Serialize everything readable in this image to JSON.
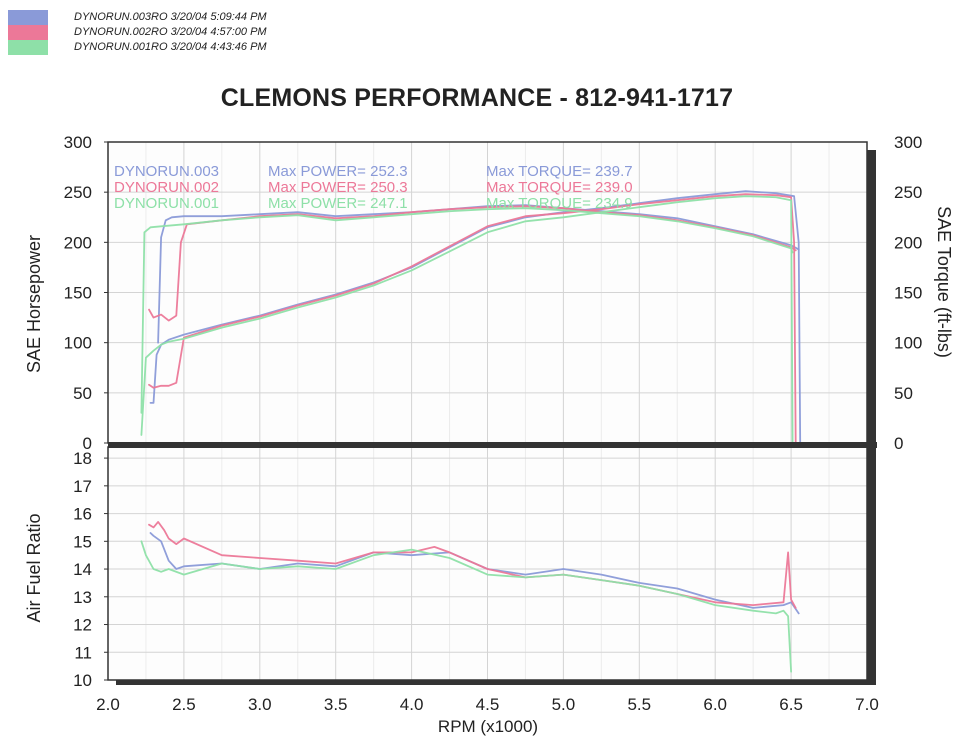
{
  "legend": {
    "items": [
      {
        "text": "DYNORUN.003RO  3/20/04 5:09:44 PM",
        "color": "#8a9ad8"
      },
      {
        "text": "DYNORUN.002RO  3/20/04 4:57:00 PM",
        "color": "#ec7898"
      },
      {
        "text": "DYNORUN.001RO  3/20/04 4:43:46 PM",
        "color": "#8ee0a8"
      }
    ]
  },
  "title": "CLEMONS PERFORMANCE - 812-941-1717",
  "colors": {
    "run003": "#8a9ad8",
    "run002": "#ec7898",
    "run001": "#8ee0a8",
    "frame": "#333333"
  },
  "chart_data": {
    "type": "line",
    "xlabel": "RPM (x1000)",
    "xlim": [
      2.0,
      7.0
    ],
    "xticks": [
      "2.0",
      "2.5",
      "3.0",
      "3.5",
      "4.0",
      "4.5",
      "5.0",
      "5.5",
      "6.0",
      "6.5",
      "7.0"
    ],
    "grid": true,
    "top_panel": {
      "ylabel_left": "SAE Horsepower",
      "ylabel_right": "SAE Torque (ft-lbs)",
      "ylim": [
        0,
        300
      ],
      "yticks": [
        "0",
        "50",
        "100",
        "150",
        "200",
        "250",
        "300"
      ],
      "summary": [
        {
          "run": "DYNORUN.003",
          "power": "Max POWER= 252.3",
          "torque": "Max TORQUE= 239.7",
          "color": "#8a9ad8"
        },
        {
          "run": "DYNORUN.002",
          "power": "Max POWER= 250.3",
          "torque": "Max TORQUE= 239.0",
          "color": "#ec7898"
        },
        {
          "run": "DYNORUN.001",
          "power": "Max POWER= 247.1",
          "torque": "Max TORQUE= 234.9",
          "color": "#8ee0a8"
        }
      ],
      "series": [
        {
          "name": "DYNORUN.003",
          "measure": "power",
          "color": "#8a9ad8",
          "x": [
            2.28,
            2.3,
            2.32,
            2.35,
            2.4,
            2.5,
            2.75,
            3.0,
            3.25,
            3.5,
            3.75,
            4.0,
            4.25,
            4.5,
            4.75,
            5.0,
            5.25,
            5.5,
            5.75,
            6.0,
            6.2,
            6.4,
            6.52,
            6.55,
            6.56
          ],
          "y": [
            40,
            40,
            88,
            98,
            103,
            108,
            118,
            127,
            138,
            148,
            160,
            175,
            195,
            215,
            225,
            230,
            234,
            239,
            244,
            248,
            251,
            249,
            246,
            200,
            0
          ]
        },
        {
          "name": "DYNORUN.003",
          "measure": "torque",
          "color": "#8a9ad8",
          "x": [
            2.33,
            2.35,
            2.38,
            2.42,
            2.5,
            2.75,
            3.0,
            3.25,
            3.5,
            3.75,
            4.0,
            4.25,
            4.5,
            4.75,
            5.0,
            5.25,
            5.5,
            5.75,
            6.0,
            6.25,
            6.5,
            6.55
          ],
          "y": [
            100,
            205,
            222,
            225,
            226,
            226,
            228,
            230,
            226,
            228,
            230,
            233,
            236,
            237,
            234,
            231,
            228,
            224,
            216,
            208,
            197,
            193
          ]
        },
        {
          "name": "DYNORUN.002",
          "measure": "power",
          "color": "#ec7898",
          "x": [
            2.27,
            2.3,
            2.35,
            2.4,
            2.45,
            2.5,
            2.75,
            3.0,
            3.25,
            3.5,
            3.75,
            4.0,
            4.25,
            4.5,
            4.75,
            5.0,
            5.25,
            5.5,
            5.75,
            6.0,
            6.2,
            6.4,
            6.5,
            6.52,
            6.53
          ],
          "y": [
            58,
            55,
            57,
            57,
            60,
            105,
            117,
            126,
            137,
            147,
            159,
            176,
            196,
            216,
            226,
            229,
            233,
            238,
            242,
            246,
            248,
            247,
            245,
            200,
            0
          ]
        },
        {
          "name": "DYNORUN.002",
          "measure": "torque",
          "color": "#ec7898",
          "x": [
            2.27,
            2.3,
            2.35,
            2.4,
            2.45,
            2.48,
            2.52,
            2.75,
            3.0,
            3.25,
            3.5,
            3.75,
            4.0,
            4.25,
            4.5,
            4.75,
            5.0,
            5.25,
            5.5,
            5.75,
            6.0,
            6.25,
            6.5,
            6.53
          ],
          "y": [
            133,
            125,
            128,
            122,
            127,
            200,
            218,
            222,
            226,
            228,
            224,
            226,
            230,
            233,
            235,
            236,
            234,
            230,
            227,
            222,
            215,
            207,
            195,
            192
          ]
        },
        {
          "name": "DYNORUN.001",
          "measure": "power",
          "color": "#8ee0a8",
          "x": [
            2.22,
            2.25,
            2.3,
            2.35,
            2.4,
            2.5,
            2.75,
            3.0,
            3.25,
            3.5,
            3.75,
            4.0,
            4.25,
            4.5,
            4.75,
            5.0,
            5.25,
            5.5,
            5.75,
            6.0,
            6.2,
            6.4,
            6.5,
            6.51
          ],
          "y": [
            8,
            85,
            92,
            98,
            101,
            104,
            115,
            124,
            135,
            145,
            157,
            172,
            191,
            210,
            221,
            225,
            230,
            235,
            240,
            244,
            246,
            245,
            242,
            0
          ]
        },
        {
          "name": "DYNORUN.001",
          "measure": "torque",
          "color": "#8ee0a8",
          "x": [
            2.22,
            2.24,
            2.28,
            2.35,
            2.5,
            2.75,
            3.0,
            3.25,
            3.5,
            3.75,
            4.0,
            4.25,
            4.5,
            4.75,
            5.0,
            5.25,
            5.5,
            5.75,
            6.0,
            6.25,
            6.5,
            6.51
          ],
          "y": [
            30,
            210,
            215,
            216,
            218,
            222,
            225,
            227,
            222,
            225,
            228,
            231,
            233,
            234,
            232,
            229,
            226,
            221,
            214,
            206,
            194,
            190
          ]
        }
      ]
    },
    "bottom_panel": {
      "ylabel": "Air Fuel Ratio",
      "ylim": [
        10,
        18.4
      ],
      "yticks": [
        "10",
        "11",
        "12",
        "13",
        "14",
        "15",
        "16",
        "17",
        "18"
      ],
      "series": [
        {
          "name": "DYNORUN.003",
          "color": "#8a9ad8",
          "x": [
            2.28,
            2.3,
            2.35,
            2.4,
            2.45,
            2.5,
            2.75,
            3.0,
            3.25,
            3.5,
            3.75,
            4.0,
            4.25,
            4.5,
            4.75,
            5.0,
            5.25,
            5.5,
            5.75,
            6.0,
            6.25,
            6.45,
            6.5,
            6.55
          ],
          "y": [
            15.3,
            15.2,
            15.0,
            14.3,
            14.0,
            14.1,
            14.2,
            14.0,
            14.2,
            14.1,
            14.6,
            14.5,
            14.6,
            14.0,
            13.8,
            14.0,
            13.8,
            13.5,
            13.3,
            12.9,
            12.6,
            12.7,
            12.8,
            12.4
          ]
        },
        {
          "name": "DYNORUN.002",
          "color": "#ec7898",
          "x": [
            2.27,
            2.3,
            2.33,
            2.37,
            2.4,
            2.45,
            2.5,
            2.75,
            3.0,
            3.25,
            3.5,
            3.75,
            4.0,
            4.15,
            4.25,
            4.5,
            4.75,
            5.0,
            5.25,
            5.5,
            5.75,
            6.0,
            6.25,
            6.45,
            6.48,
            6.5,
            6.53
          ],
          "y": [
            15.6,
            15.5,
            15.7,
            15.4,
            15.1,
            14.9,
            15.1,
            14.5,
            14.4,
            14.3,
            14.2,
            14.6,
            14.6,
            14.8,
            14.6,
            14.0,
            13.7,
            13.8,
            13.6,
            13.4,
            13.1,
            12.8,
            12.7,
            12.8,
            14.6,
            12.9,
            12.6
          ]
        },
        {
          "name": "DYNORUN.001",
          "color": "#8ee0a8",
          "x": [
            2.22,
            2.25,
            2.3,
            2.35,
            2.4,
            2.5,
            2.75,
            3.0,
            3.25,
            3.5,
            3.75,
            4.0,
            4.25,
            4.5,
            4.75,
            5.0,
            5.25,
            5.5,
            5.75,
            6.0,
            6.25,
            6.4,
            6.45,
            6.48,
            6.5
          ],
          "y": [
            15.0,
            14.5,
            14.0,
            13.9,
            14.0,
            13.8,
            14.2,
            14.0,
            14.1,
            14.0,
            14.5,
            14.7,
            14.4,
            13.8,
            13.7,
            13.8,
            13.6,
            13.4,
            13.1,
            12.7,
            12.5,
            12.4,
            12.5,
            12.3,
            10.3
          ]
        }
      ]
    }
  }
}
